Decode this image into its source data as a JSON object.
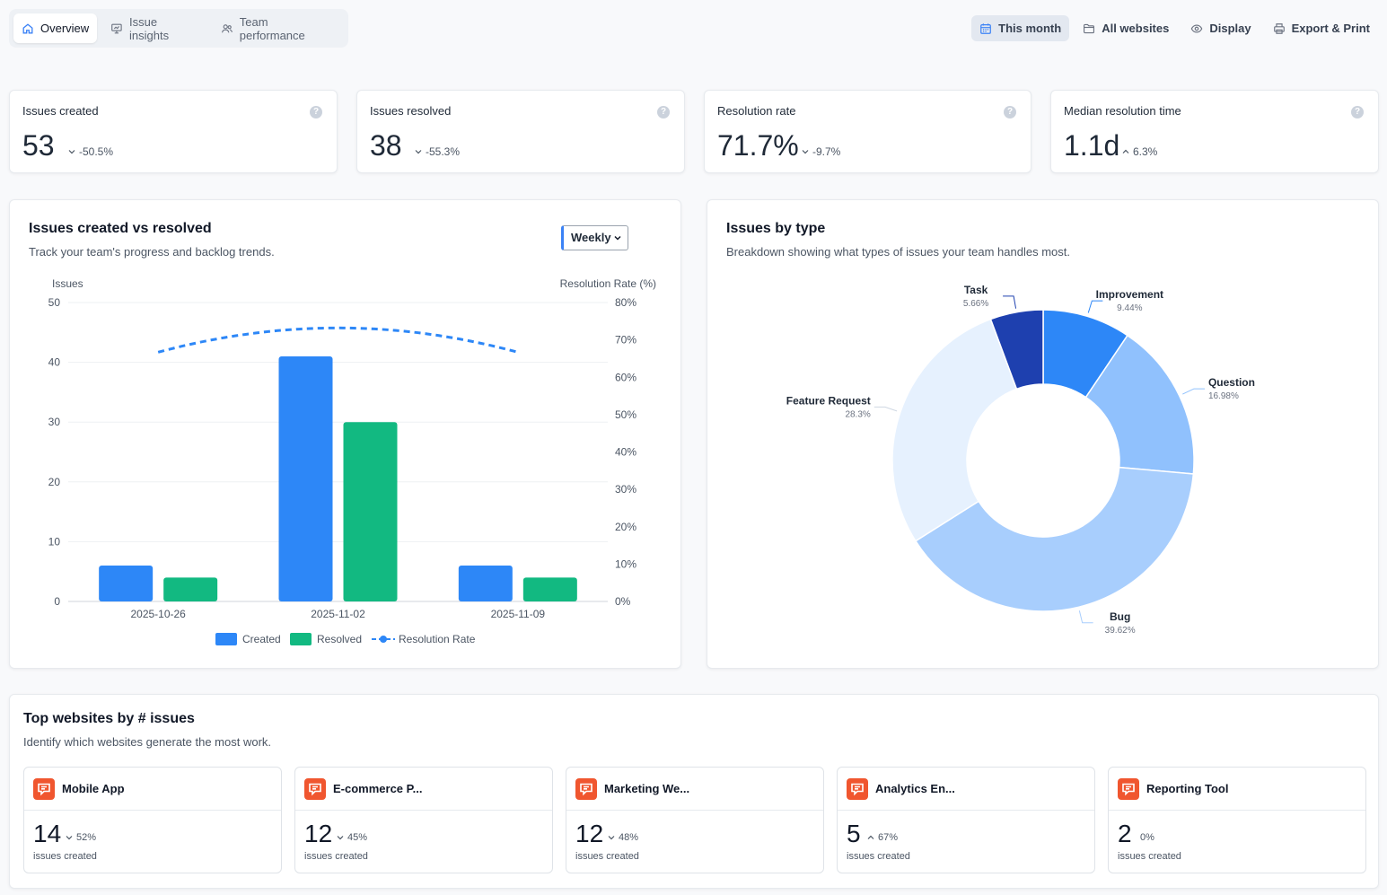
{
  "nav": {
    "tabs": [
      {
        "label": "Overview",
        "icon": "home-icon",
        "active": true
      },
      {
        "label": "Issue insights",
        "icon": "presentation-icon",
        "active": false
      },
      {
        "label": "Team performance",
        "icon": "users-icon",
        "active": false
      }
    ],
    "actions": [
      {
        "label": "This month",
        "icon": "calendar-icon",
        "active": true
      },
      {
        "label": "All websites",
        "icon": "folder-icon",
        "active": false
      },
      {
        "label": "Display",
        "icon": "eye-icon",
        "active": false
      },
      {
        "label": "Export & Print",
        "icon": "printer-icon",
        "active": false
      }
    ]
  },
  "kpis": [
    {
      "label": "Issues created",
      "value": "53",
      "delta": "-50.5%",
      "direction": "down"
    },
    {
      "label": "Issues resolved",
      "value": "38",
      "delta": "-55.3%",
      "direction": "down"
    },
    {
      "label": "Resolution rate",
      "value": "71.7%",
      "delta": "-9.7%",
      "direction": "down"
    },
    {
      "label": "Median resolution time",
      "value": "1.1d",
      "delta": "6.3%",
      "direction": "up"
    }
  ],
  "created_vs_resolved": {
    "title": "Issues created vs resolved",
    "subtitle": "Track your team's progress and backlog trends.",
    "period_select": "Weekly"
  },
  "issues_by_type": {
    "title": "Issues by type",
    "subtitle": "Breakdown showing what types of issues your team handles most."
  },
  "chart_data": [
    {
      "type": "bar",
      "title": "Issues created vs resolved",
      "categories": [
        "2025-10-26",
        "2025-11-02",
        "2025-11-09"
      ],
      "series": [
        {
          "name": "Created",
          "values": [
            6,
            41,
            6
          ],
          "color": "#2d87f7"
        },
        {
          "name": "Resolved",
          "values": [
            4,
            30,
            4
          ],
          "color": "#12b981"
        },
        {
          "name": "Resolution Rate",
          "values": [
            66.7,
            73.2,
            66.7
          ],
          "axis": "right",
          "style": "dashed-line",
          "color": "#2d87f7"
        }
      ],
      "ylabel": "Issues",
      "ylabel_right": "Resolution Rate (%)",
      "ylim": [
        0,
        50
      ],
      "yticks": [
        "0",
        "10",
        "20",
        "30",
        "40",
        "50"
      ],
      "ylim_right": [
        0,
        80
      ],
      "yticks_right": [
        "0%",
        "10%",
        "20%",
        "30%",
        "40%",
        "50%",
        "60%",
        "70%",
        "80%"
      ],
      "legend": [
        "Created",
        "Resolved",
        "Resolution Rate"
      ]
    },
    {
      "type": "pie",
      "title": "Issues by type",
      "slices": [
        {
          "label": "Improvement",
          "pct": "9.44%",
          "value": 9.44,
          "color": "#2d87f7"
        },
        {
          "label": "Question",
          "pct": "16.98%",
          "value": 16.98,
          "color": "#90c1fd"
        },
        {
          "label": "Bug",
          "pct": "39.62%",
          "value": 39.62,
          "color": "#a8cefd"
        },
        {
          "label": "Feature Request",
          "pct": "28.3%",
          "value": 28.3,
          "color": "#e6f1fe"
        },
        {
          "label": "Task",
          "pct": "5.66%",
          "value": 5.66,
          "color": "#1e40af"
        }
      ]
    }
  ],
  "top_websites": {
    "title": "Top websites by # issues",
    "subtitle": "Identify which websites generate the most work.",
    "caption": "issues created",
    "sites": [
      {
        "name": "Mobile App",
        "value": "14",
        "delta": "52%",
        "direction": "down"
      },
      {
        "name": "E-commerce P...",
        "value": "12",
        "delta": "45%",
        "direction": "down"
      },
      {
        "name": "Marketing We...",
        "value": "12",
        "delta": "48%",
        "direction": "down"
      },
      {
        "name": "Analytics En...",
        "value": "5",
        "delta": "67%",
        "direction": "up"
      },
      {
        "name": "Reporting Tool",
        "value": "2",
        "delta": "0%",
        "direction": "none"
      }
    ]
  }
}
